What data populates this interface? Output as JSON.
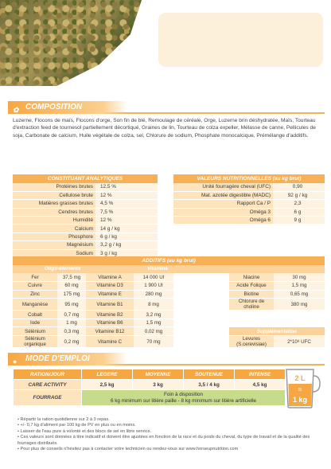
{
  "sections": {
    "composition": "COMPOSITION",
    "mode": "MODE D'EMPLOI"
  },
  "composition_text": "Luzerne, Flocons de maïs, Flocons d'orge, Son fin de blé, Remoulage de céréale, Orge, Luzerne brin déshydratée, Maïs, Tourteau d'extraction feed de tournesol partiellement décortiqué, Graines de lin, Tourteau de colza expeller, Mélasse de canne, Pellicules de soja, Carbonate de calcium, Huile végétale de colza, sel, Chlorure de sodium, Phosphate monocalcique, Prémélange d'additifs.",
  "analytic": {
    "title": "CONSTITUANT ANALYTIQUES",
    "rows": [
      [
        "Protéines brutes",
        "12,5 %"
      ],
      [
        "Cellulose brute",
        "12 %"
      ],
      [
        "Matières grasses brutes",
        "4,5 %"
      ],
      [
        "Cendres brutes",
        "7,5 %"
      ],
      [
        "Humidité",
        "12 %"
      ],
      [
        "Calcium",
        "14 g / kg"
      ],
      [
        "Phosphore",
        "6 g / kg"
      ],
      [
        "Magnésium",
        "3,2 g / kg"
      ],
      [
        "Sodium",
        "3 g / kg"
      ],
      [
        "Lysine",
        "5 g / kg"
      ]
    ]
  },
  "nutri": {
    "title": "VALEURS NUTRITIONNELLES (au kg brut)",
    "rows": [
      [
        "Unité fourragère cheval (UFC)",
        "0,90"
      ],
      [
        "Mat. azotée digestible (MADC)",
        "92 g / kg"
      ],
      [
        "Rapport Ca / P",
        "2,3"
      ],
      [
        "Oméga 3",
        "6 g"
      ],
      [
        "Oméga 6",
        "9 g"
      ]
    ]
  },
  "additifs": {
    "title": "ADDITIFS (au kg brut)",
    "oligo_title": "Oligo-éléments",
    "vitamine_title": "Vitamine",
    "oligo": [
      [
        "Fer",
        "37,5 mg"
      ],
      [
        "Cuivre",
        "60 mg"
      ],
      [
        "Zinc",
        "175 mg"
      ],
      [
        "Manganèse",
        "95 mg"
      ],
      [
        "Cobalt",
        "0,7 mg"
      ],
      [
        "Iode",
        "1 mg"
      ],
      [
        "Sélénium",
        "0,3 mg"
      ],
      [
        "Sélénium organique",
        "0,2 mg"
      ]
    ],
    "vitamine": [
      [
        "Vitamine A",
        "14 000 UI"
      ],
      [
        "Vitamine D3",
        "1 900 UI"
      ],
      [
        "Vitamine E",
        "280 mg"
      ],
      [
        "Vitamine B1",
        "8 mg"
      ],
      [
        "Vitamine B2",
        "3,2 mg"
      ],
      [
        "Vitamine B6",
        "1,5 mg"
      ],
      [
        "Vitamine B12",
        "0,02 mg"
      ],
      [
        "Vitamine C",
        "70 mg"
      ]
    ],
    "other": [
      [
        "Niacine",
        "30 mg"
      ],
      [
        "Acide Folique",
        "1,5 mg"
      ],
      [
        "Biotine",
        "0,65 mg"
      ],
      [
        "Chlorure de choline",
        "380 mg"
      ]
    ],
    "suppl_title": "Supplémentation",
    "suppl_label": "Levures (S.cerevisiae)",
    "suppl_value": "2*10⁸ UFC"
  },
  "mode": {
    "headers": [
      "RATION/JOUR",
      "LEGERE",
      "MOYENNE",
      "SOUTENUE",
      "INTENSE"
    ],
    "care_label": "CARE ACTIVITY",
    "care_values": [
      "2,5 kg",
      "3 kg",
      "3,5 / 4 kg",
      "4,5 kg"
    ],
    "fourrage_label": "FOURRAGE",
    "fourrage_line1": "Foin à disposition",
    "fourrage_line2": "6 kg minimum sur litière paille - 8 kg minimum sur litière artificielle",
    "jug_top": "2 L",
    "jug_eq": "=",
    "jug_bottom": "1 kg"
  },
  "notes": [
    "Répartir la ration quotidienne sur 2 à 3 repas.",
    "+/- 0,7 kg d'aliment par 100 kg de PV en plus ou en moins.",
    "Laisser de l'eau pure à volonté et des blocs de sel en libre service.",
    "Ces valeurs sont données à titre indicatif et doivent être ajustées en fonction de la race et du poids du cheval, du type de travail et de la qualité des fourrages distribués.",
    "Pour plus de conseils n'hésitez pas à contacter votre technicien ou rendez-vous sur www.horseupnutrition.com"
  ],
  "colors": {
    "accent": "#f7a742",
    "light": "#fde4bd",
    "lighter": "#fef3e0",
    "green": "#c6dc8a"
  }
}
